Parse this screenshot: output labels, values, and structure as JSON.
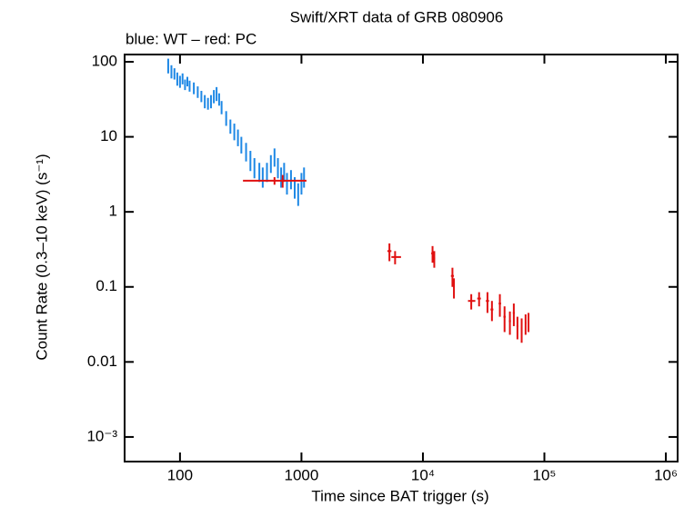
{
  "chart_data": {
    "type": "scatter",
    "title": "Swift/XRT data of GRB 080906",
    "subtitle": "blue: WT – red: PC",
    "x_label": "Time since BAT trigger (s)",
    "y_label": "Count Rate (0.3–10 keV) (s⁻¹)",
    "log_x": true,
    "log_y": true,
    "xlim": [
      35,
      1250000
    ],
    "ylim": [
      0.00047,
      125
    ],
    "xticks": [
      100,
      1000,
      {
        "value": 10000,
        "label": "10⁴"
      },
      {
        "value": 100000,
        "label": "10⁵"
      },
      {
        "value": 1000000,
        "label": "10⁶"
      }
    ],
    "yticks": [
      {
        "value": 0.001,
        "label": "10⁻³"
      },
      0.01,
      0.1,
      1,
      10,
      100
    ],
    "series": [
      {
        "color": "#1e88e5",
        "x": [
          80,
          85,
          90,
          95,
          100,
          105,
          110,
          115,
          120,
          130,
          140,
          150,
          160,
          170,
          180,
          190,
          200,
          210,
          220,
          240,
          260,
          280,
          300,
          320,
          350,
          380,
          410,
          450,
          480,
          520,
          560,
          600,
          640,
          680,
          720,
          760,
          820,
          880,
          940,
          1000,
          1050
        ],
        "values": [
          90,
          75,
          70,
          60,
          55,
          60,
          50,
          55,
          48,
          45,
          40,
          35,
          30,
          28,
          30,
          35,
          38,
          32,
          25,
          18,
          14,
          12,
          10,
          8,
          6.5,
          5,
          4,
          3.5,
          3,
          3.5,
          4.5,
          5.5,
          4,
          3,
          3.5,
          2.5,
          2.8,
          2.2,
          1.8,
          2.5,
          3
        ],
        "yerr": [
          20,
          15,
          12,
          12,
          10,
          10,
          8,
          8,
          8,
          8,
          7,
          6,
          6,
          5,
          6,
          7,
          8,
          6,
          5,
          4,
          3,
          3,
          2.5,
          2,
          1.8,
          1.5,
          1.2,
          1,
          0.9,
          1,
          1.2,
          1.5,
          1.2,
          0.9,
          1,
          0.8,
          0.8,
          0.7,
          0.6,
          0.8,
          0.9
        ]
      },
      {
        "color": "#e01010",
        "x": [
          600,
          700,
          5300,
          5900,
          12000,
          12400,
          17500,
          18000,
          25000,
          29000,
          34000,
          37000,
          43000,
          47000,
          52000,
          56000,
          60000,
          65000,
          70000,
          74000
        ],
        "xmin": [
          330,
          680,
          5100,
          5500,
          11700,
          12200,
          17000,
          17800,
          23500,
          28000,
          33000,
          36000,
          42000,
          46000,
          51000,
          55000,
          59000,
          64000,
          69000,
          73000
        ],
        "xmax": [
          1100,
          720,
          5500,
          6600,
          12200,
          12600,
          18000,
          18300,
          27000,
          30000,
          35000,
          38000,
          44000,
          48000,
          53000,
          57000,
          61000,
          66000,
          71000,
          75000
        ],
        "values": [
          2.6,
          2.6,
          0.3,
          0.25,
          0.28,
          0.24,
          0.14,
          0.1,
          0.065,
          0.07,
          0.065,
          0.05,
          0.06,
          0.04,
          0.035,
          0.045,
          0.03,
          0.028,
          0.033,
          0.035
        ],
        "yerr": [
          0.3,
          0.5,
          0.08,
          0.05,
          0.07,
          0.06,
          0.04,
          0.03,
          0.015,
          0.015,
          0.02,
          0.015,
          0.02,
          0.015,
          0.012,
          0.015,
          0.01,
          0.01,
          0.01,
          0.01
        ]
      }
    ]
  }
}
